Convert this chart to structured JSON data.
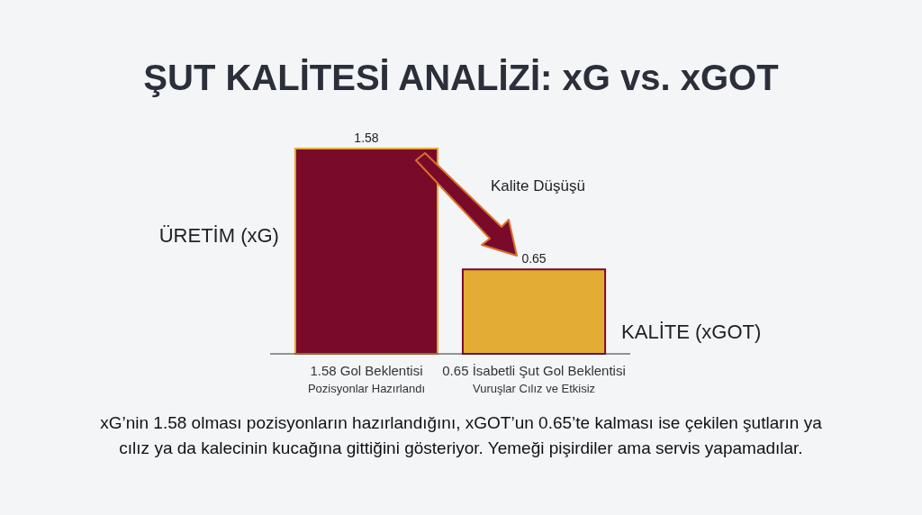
{
  "chart_data": {
    "type": "bar",
    "title": "ŞUT KALİTESİ ANALİZİ: xG vs. xGOT",
    "categories": [
      "1.58 Gol Beklentisi\nPozisyonlar Hazırlandı",
      "0.65 İsabetli Şut Gol Beklentisi\nVuruşlar Cılız ve Etkisiz"
    ],
    "values": [
      1.58,
      0.65
    ],
    "colors": [
      "#7a0a2a",
      "#e3ac35"
    ],
    "data_labels": true,
    "annotations": [
      "Kalite Düşüşü",
      "ÜRETİM (xG)",
      "KALİTE (xGOT)",
      "xG’nin 1.58 olması pozisyonların hazırlandığını, xGOT’un 0.65’te kalması ise çekilen şutların ya cılız ya da kalecinin kucağına gittiğini gösteriyor. Yemeği pişirdiler ama servis yapamadılar."
    ]
  }
}
